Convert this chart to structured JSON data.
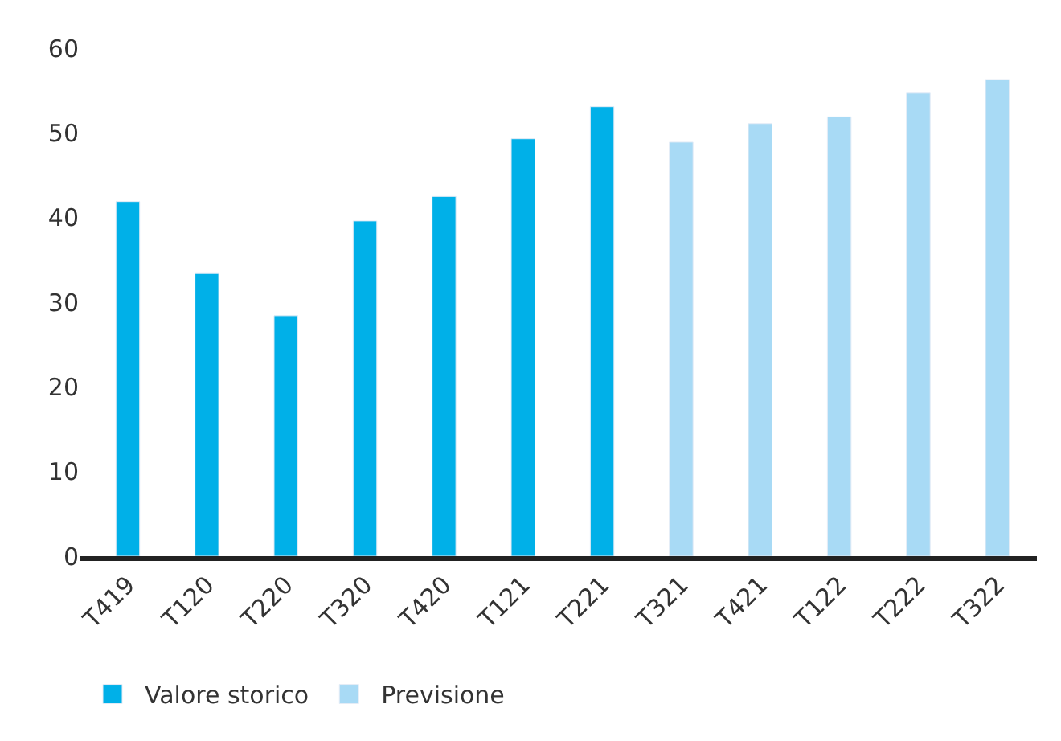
{
  "chart_data": {
    "type": "bar",
    "categories": [
      "T419",
      "T120",
      "T220",
      "T320",
      "T420",
      "T121",
      "T221",
      "T321",
      "T421",
      "T122",
      "T222",
      "T322"
    ],
    "series": [
      {
        "name": "Valore storico",
        "color": "#00b0e8",
        "values": [
          41.9,
          33.4,
          28.4,
          39.6,
          42.5,
          49.3,
          53.1,
          null,
          null,
          null,
          null,
          null
        ]
      },
      {
        "name": "Previsione",
        "color": "#a8daf5",
        "values": [
          null,
          null,
          null,
          null,
          null,
          null,
          null,
          48.9,
          51.1,
          51.9,
          54.7,
          56.3
        ]
      }
    ],
    "ylim": [
      0,
      60
    ],
    "yticks": [
      0,
      10,
      20,
      30,
      40,
      50,
      60
    ],
    "legend": "bottom"
  }
}
